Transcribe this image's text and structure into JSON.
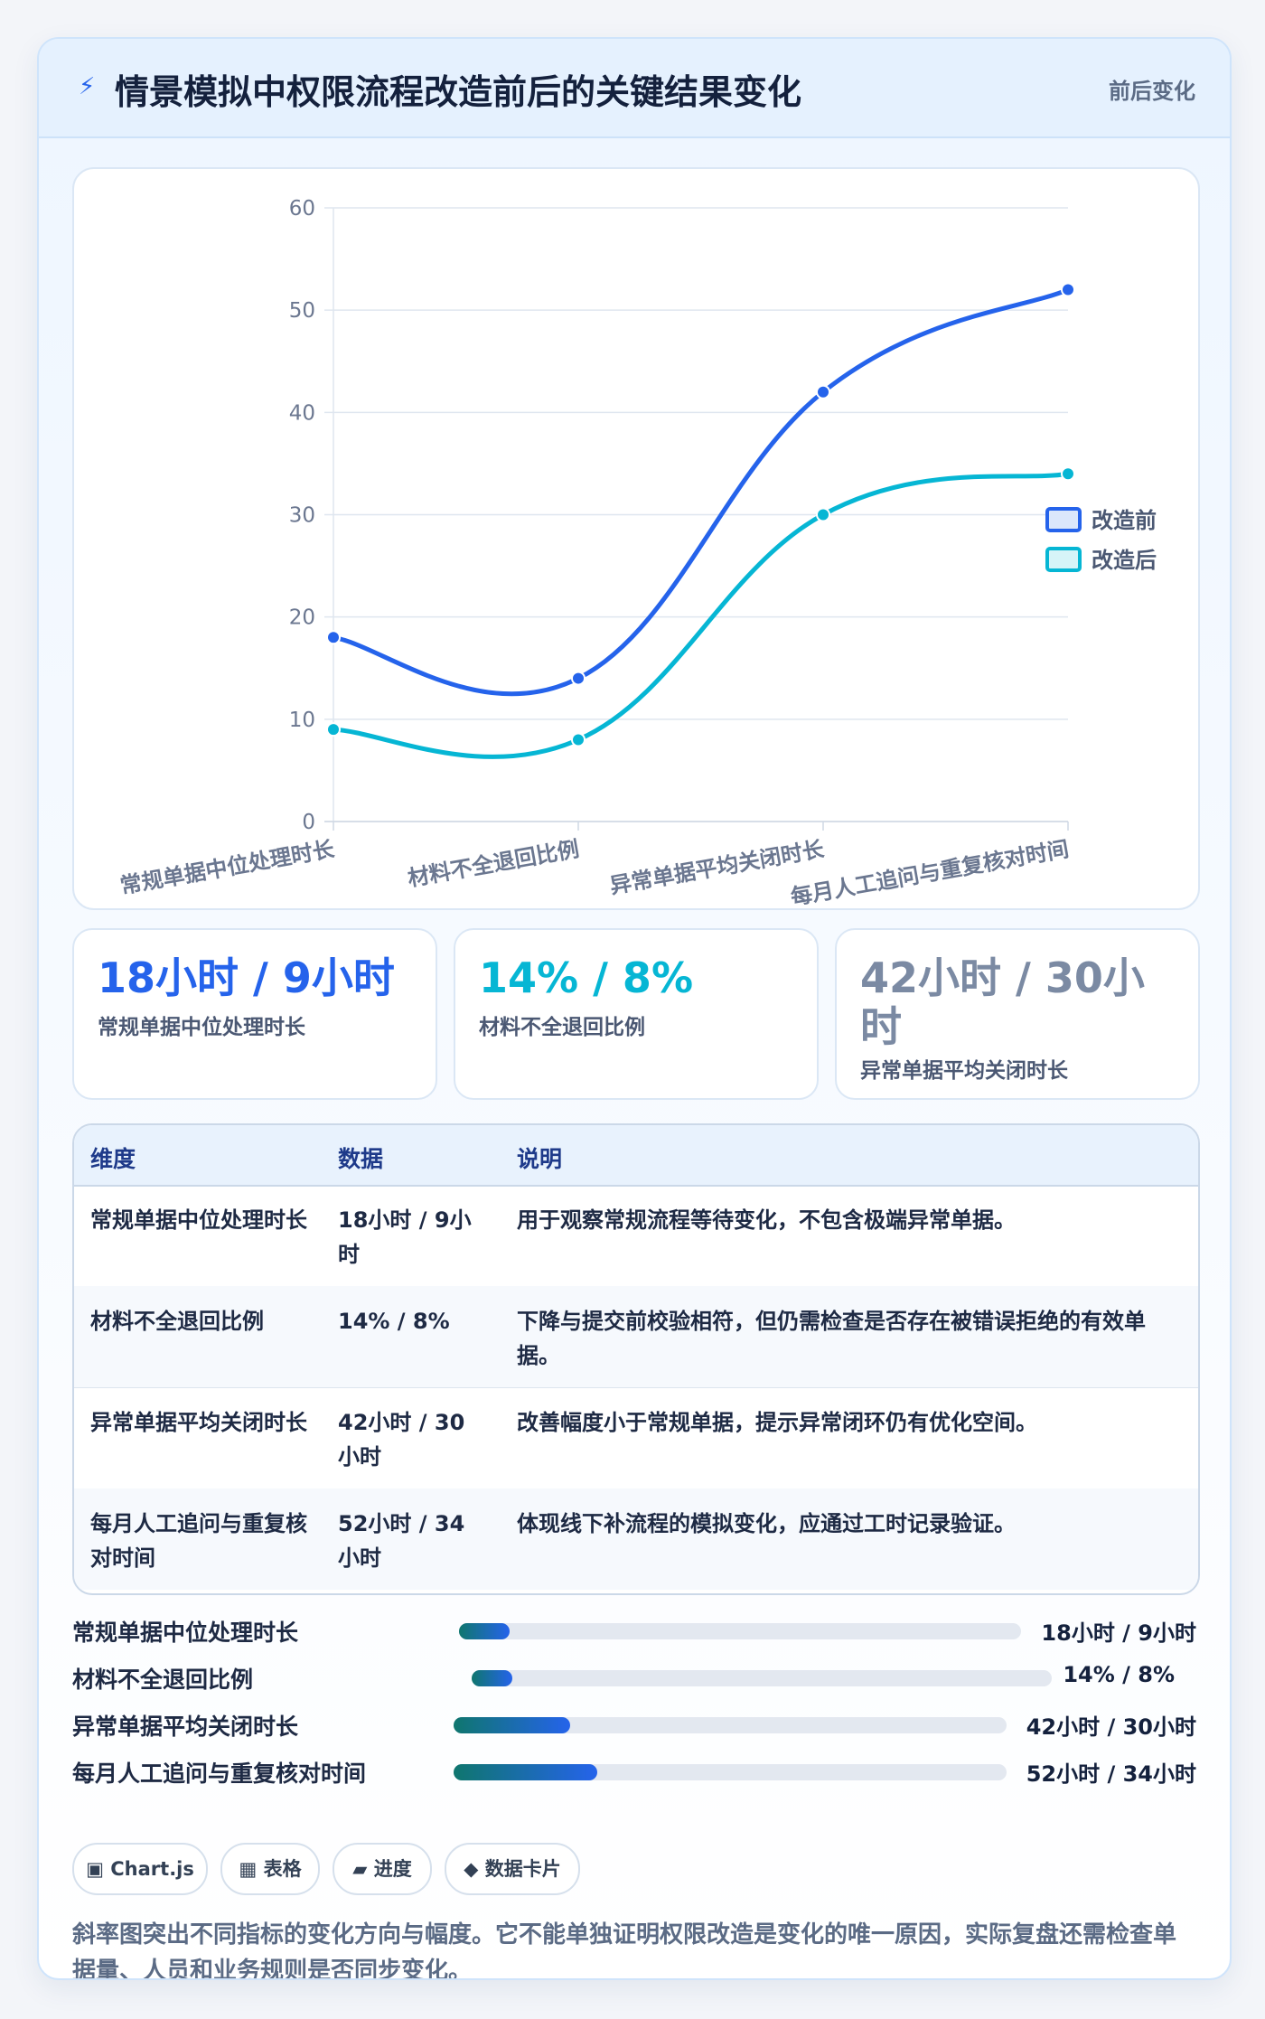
{
  "header": {
    "title": "情景模拟中权限流程改造前后的关键结果变化",
    "badge": "前后变化",
    "icon": "bolt-icon"
  },
  "colors": {
    "before": "#2563eb",
    "after": "#06b6d4",
    "accent_gray": "#7b8aa3"
  },
  "chart_data": {
    "type": "line",
    "categories": [
      "常规单据中位处理时长",
      "材料不全退回比例",
      "异常单据平均关闭时长",
      "每月人工追问与重复核对时间"
    ],
    "series": [
      {
        "name": "改造前",
        "values": [
          18,
          14,
          42,
          52
        ],
        "color": "#2563eb"
      },
      {
        "name": "改造后",
        "values": [
          9,
          8,
          30,
          34
        ],
        "color": "#06b6d4"
      }
    ],
    "ylim": [
      0,
      60
    ],
    "yticks": [
      "0",
      "10",
      "20",
      "30",
      "40",
      "50",
      "60"
    ],
    "grid": true,
    "legend": "right"
  },
  "kpis": [
    {
      "value": "18小时 / 9小时",
      "label": "常规单据中位处理时长"
    },
    {
      "value": "14% / 8%",
      "label": "材料不全退回比例"
    },
    {
      "value": "42小时 / 30小时",
      "label": "异常单据平均关闭时长"
    }
  ],
  "table": {
    "headers": [
      "维度",
      "数据",
      "说明"
    ],
    "rows": [
      {
        "dim": "常规单据中位处理时长",
        "data": "18小时 / 9小时",
        "desc": "用于观察常规流程等待变化，不包含极端异常单据。"
      },
      {
        "dim": "材料不全退回比例",
        "data": "14% / 8%",
        "desc": "下降与提交前校验相符，但仍需检查是否存在被错误拒绝的有效单据。"
      },
      {
        "dim": "异常单据平均关闭时长",
        "data": "42小时 / 30小时",
        "desc": "改善幅度小于常规单据，提示异常闭环仍有优化空间。"
      },
      {
        "dim": "每月人工追问与重复核对时间",
        "data": "52小时 / 34小时",
        "desc": "体现线下补流程的模拟变化，应通过工时记录验证。"
      }
    ]
  },
  "progress": [
    {
      "label": "常规单据中位处理时长",
      "value": "18小时 / 9小时",
      "fraction": 0.09
    },
    {
      "label": "材料不全退回比例",
      "value": "14% / 8%",
      "fraction": 0.07
    },
    {
      "label": "异常单据平均关闭时长",
      "value": "42小时 / 30小时",
      "fraction": 0.21
    },
    {
      "label": "每月人工追问与重复核对时间",
      "value": "52小时 / 34小时",
      "fraction": 0.26
    }
  ],
  "chips": [
    "▣ Chart.js",
    "▦ 表格",
    "▰ 进度",
    "◆ 数据卡片"
  ],
  "note": "斜率图突出不同指标的变化方向与幅度。它不能单独证明权限改造是变化的唯一原因，实际复盘还需检查单据量、人员和业务规则是否同步变化。"
}
